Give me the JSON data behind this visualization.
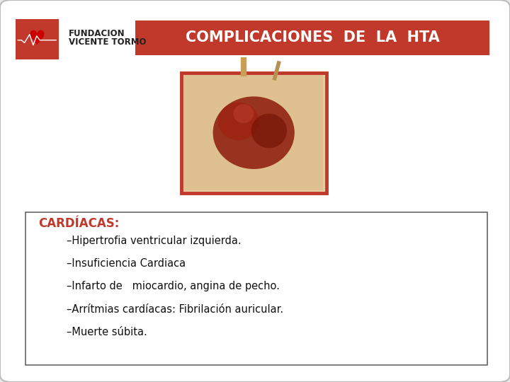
{
  "bg_color": "#e8e8e8",
  "slide_bg": "#ffffff",
  "title_bar_color": "#c0392b",
  "title_text": "COMPLICACIONES  DE  LA  HTA",
  "title_text_color": "#ffffff",
  "title_fontsize": 15,
  "logo_text1": "FUNDACION",
  "logo_text2": "VICENTE TORMO",
  "logo_text_color": "#222222",
  "logo_fontsize": 8.5,
  "section_title": "CARDÍACAS:",
  "section_title_color": "#c0392b",
  "section_fontsize": 12,
  "bullet_items": [
    "–Hipertrofia ventricular izquierda.",
    "–Insuficiencia Cardiaca",
    "–Infarto de   miocardio, angina de pecho.",
    "–Arrítmias cardíacas: Fibrilación auricular.",
    "–Muerte súbita."
  ],
  "bullet_color": "#111111",
  "bullet_fontsize": 10.5,
  "box_edge_color": "#666666",
  "heart_frame_color": "#c0392b",
  "slide_border_color": "#bbbbbb"
}
